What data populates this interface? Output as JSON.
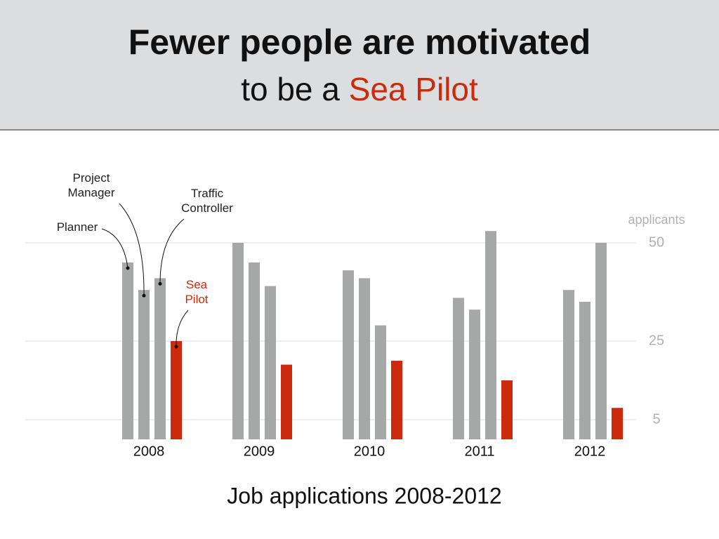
{
  "chart_data": {
    "type": "bar",
    "title": "Fewer people are motivated",
    "subtitle_lead": "to be a",
    "subtitle_highlight": "Sea Pilot",
    "subtitle_highlight_color": "#cc2a0c",
    "x_label": "Job applications 2008-2012",
    "y_label": "applicants",
    "categories": [
      "2008",
      "2009",
      "2010",
      "2011",
      "2012"
    ],
    "series": [
      {
        "name": "Planner",
        "color": "#a5a8a7",
        "label_color": "#222222",
        "values": [
          45,
          50,
          43,
          36,
          38
        ]
      },
      {
        "name": "Project Manager",
        "color": "#a5a8a7",
        "label_color": "#222222",
        "values": [
          38,
          45,
          41,
          33,
          35
        ]
      },
      {
        "name": "Traffic Controller",
        "color": "#a5a8a7",
        "label_color": "#222222",
        "values": [
          41,
          39,
          29,
          53,
          50
        ]
      },
      {
        "name": "Sea Pilot",
        "color": "#cc2a0c",
        "label_color": "#cc2a0c",
        "values": [
          25,
          19,
          20,
          15,
          8
        ]
      }
    ],
    "ylim": [
      0,
      55
    ],
    "yticks": [
      5,
      25,
      50
    ],
    "grid": true
  }
}
